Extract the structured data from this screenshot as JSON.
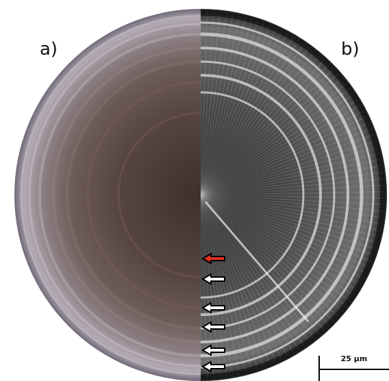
{
  "labels": {
    "left": "a)",
    "right": "b)"
  },
  "scale_bar": {
    "label": "25 µm"
  }
}
